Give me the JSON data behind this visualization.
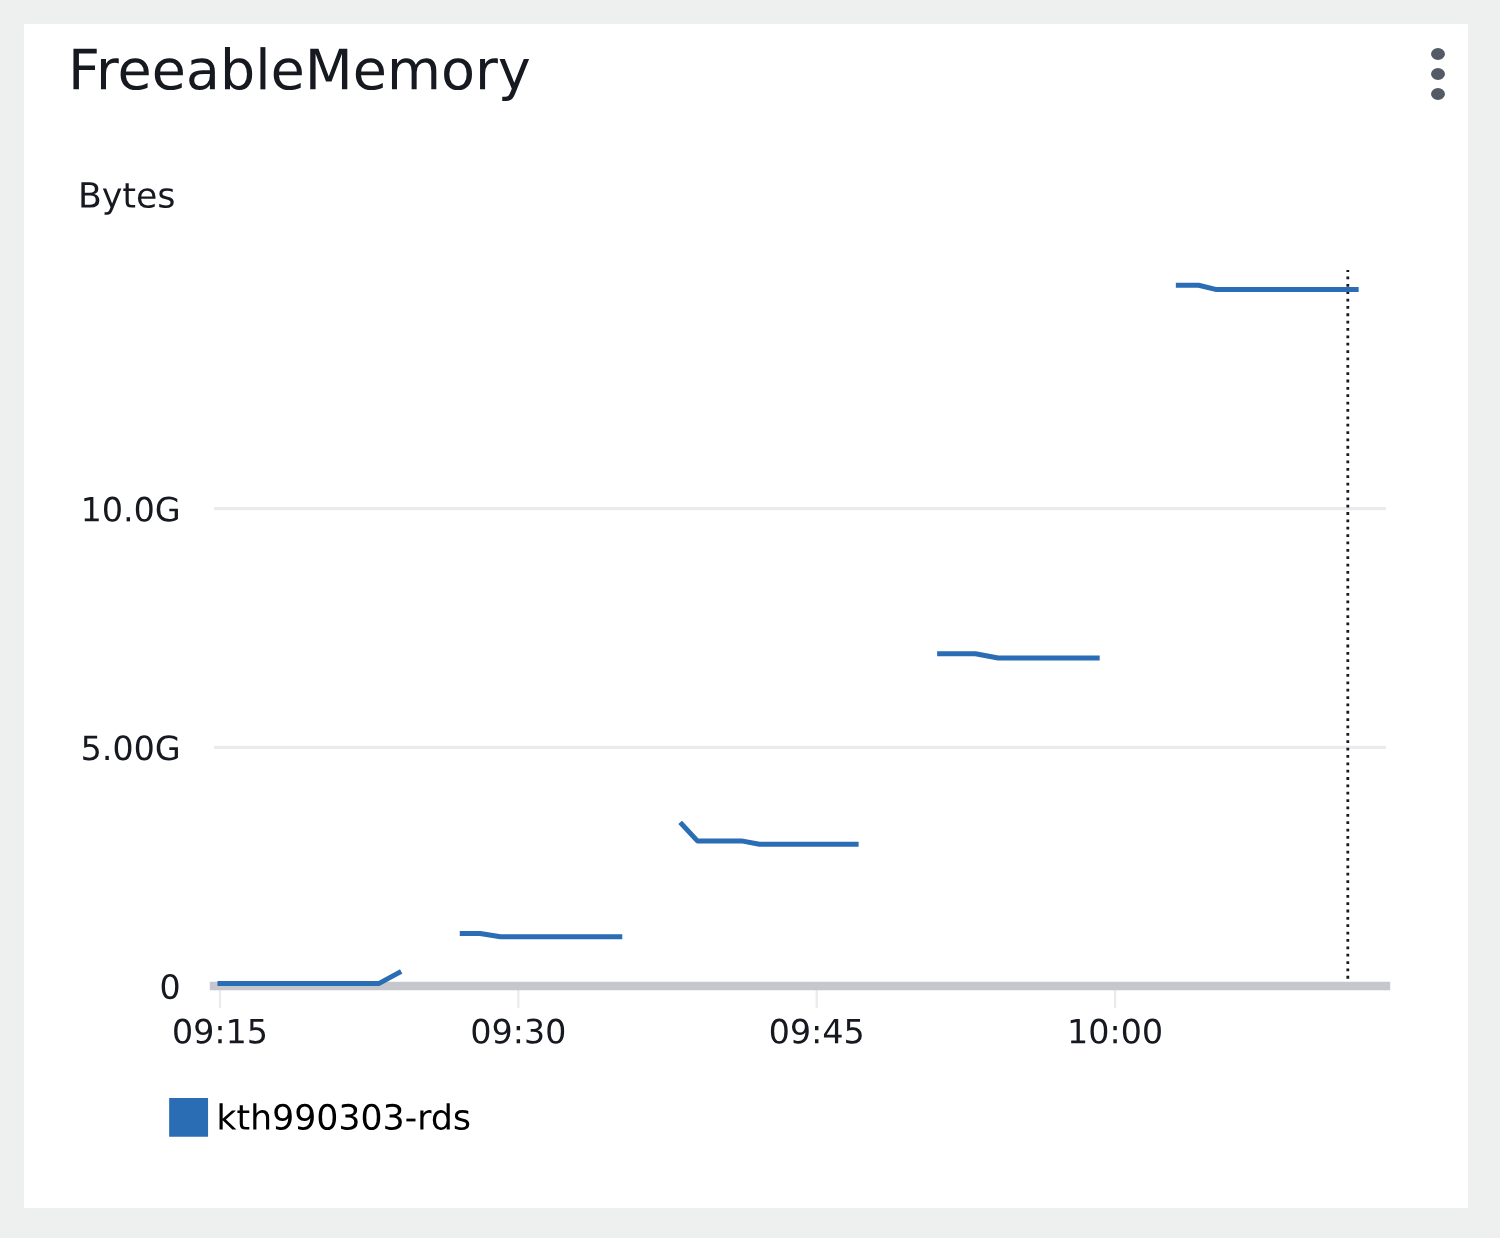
{
  "chart_data": {
    "type": "line",
    "title": "FreeableMemory",
    "ylabel": "Bytes",
    "x": [
      9.25,
      9.383,
      9.4,
      9.45,
      9.453,
      9.468,
      9.485,
      9.585,
      9.61,
      9.637,
      9.65,
      9.687,
      9.702,
      9.783,
      9.8,
      9.853,
      9.883,
      9.902,
      9.985,
      10.02,
      10.053,
      10.07,
      10.085,
      10.202
    ],
    "series": [
      {
        "name": "kth990303-rds",
        "color": "#2a6db5",
        "values": [
          0.05,
          0.05,
          0.28,
          null,
          1.1,
          1.1,
          1.03,
          1.03,
          null,
          3.39,
          3.04,
          3.04,
          2.97,
          2.97,
          null,
          6.96,
          6.96,
          6.87,
          6.87,
          null,
          14.68,
          14.68,
          14.59,
          14.59
        ]
      }
    ],
    "xlim": [
      9.245,
      10.227
    ],
    "ylim": [
      0,
      15
    ],
    "xticks": [
      {
        "value": 9.25,
        "label": "09:15"
      },
      {
        "value": 9.5,
        "label": "09:30"
      },
      {
        "value": 9.75,
        "label": "09:45"
      },
      {
        "value": 10,
        "label": "10:00"
      }
    ],
    "yticks": [
      0,
      {
        "value": 5,
        "label": "5.00G"
      },
      {
        "value": 10,
        "label": "10.0G"
      }
    ],
    "ref_lines": [
      {
        "axis": "x",
        "value": 10.195,
        "color": "#16191f",
        "line_style": "dotted"
      }
    ],
    "grid": "y",
    "legend": "bottom left",
    "marker": "none",
    "line_style": "solid"
  }
}
